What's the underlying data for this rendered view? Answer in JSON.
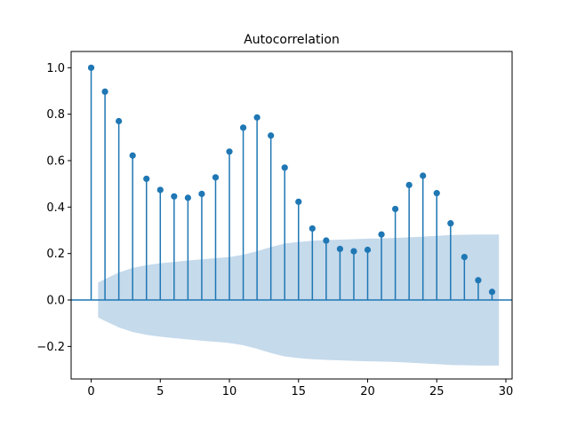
{
  "chart_data": {
    "type": "stem",
    "title": "Autocorrelation",
    "xlabel": "",
    "ylabel": "",
    "xlim": [
      -1.45,
      30.45
    ],
    "ylim": [
      -0.34,
      1.07
    ],
    "xticks": [
      0,
      5,
      10,
      15,
      20,
      25,
      30
    ],
    "yticks": [
      -0.2,
      0.0,
      0.2,
      0.4,
      0.6,
      0.8,
      1.0
    ],
    "ytick_labels": [
      "−0.2",
      "0.0",
      "0.2",
      "0.4",
      "0.6",
      "0.8",
      "1.0"
    ],
    "series": [
      {
        "lags": [
          0,
          1,
          2,
          3,
          4,
          5,
          6,
          7,
          8,
          9,
          10,
          11,
          12,
          13,
          14,
          15,
          16,
          17,
          18,
          19,
          20,
          21,
          22,
          23,
          24,
          25,
          26,
          27,
          28,
          29
        ],
        "values": [
          1.0,
          0.897,
          0.77,
          0.622,
          0.522,
          0.474,
          0.446,
          0.44,
          0.457,
          0.528,
          0.639,
          0.742,
          0.786,
          0.708,
          0.57,
          0.423,
          0.308,
          0.256,
          0.22,
          0.21,
          0.216,
          0.282,
          0.392,
          0.495,
          0.535,
          0.46,
          0.33,
          0.185,
          0.085,
          0.035
        ]
      }
    ],
    "confidence_band": {
      "lags": [
        0.5,
        1,
        2,
        3,
        4,
        5,
        6,
        7,
        8,
        9,
        10,
        11,
        12,
        13,
        14,
        15,
        16,
        17,
        18,
        19,
        20,
        21,
        22,
        23,
        24,
        25,
        26,
        27,
        28,
        29,
        29.5
      ],
      "upper": [
        0.075,
        0.09,
        0.118,
        0.138,
        0.15,
        0.158,
        0.164,
        0.17,
        0.175,
        0.18,
        0.185,
        0.195,
        0.21,
        0.228,
        0.243,
        0.25,
        0.255,
        0.258,
        0.26,
        0.262,
        0.264,
        0.265,
        0.267,
        0.27,
        0.273,
        0.276,
        0.28,
        0.281,
        0.282,
        0.282,
        0.282
      ],
      "lower": [
        -0.075,
        -0.09,
        -0.118,
        -0.138,
        -0.15,
        -0.158,
        -0.164,
        -0.17,
        -0.175,
        -0.18,
        -0.185,
        -0.195,
        -0.21,
        -0.228,
        -0.243,
        -0.25,
        -0.255,
        -0.258,
        -0.26,
        -0.262,
        -0.264,
        -0.265,
        -0.267,
        -0.27,
        -0.273,
        -0.276,
        -0.28,
        -0.281,
        -0.282,
        -0.282,
        -0.282
      ]
    },
    "grid": false,
    "colors": {
      "stem": "#1f77b4",
      "band": "#c5daeb",
      "axes": "#000000"
    }
  }
}
